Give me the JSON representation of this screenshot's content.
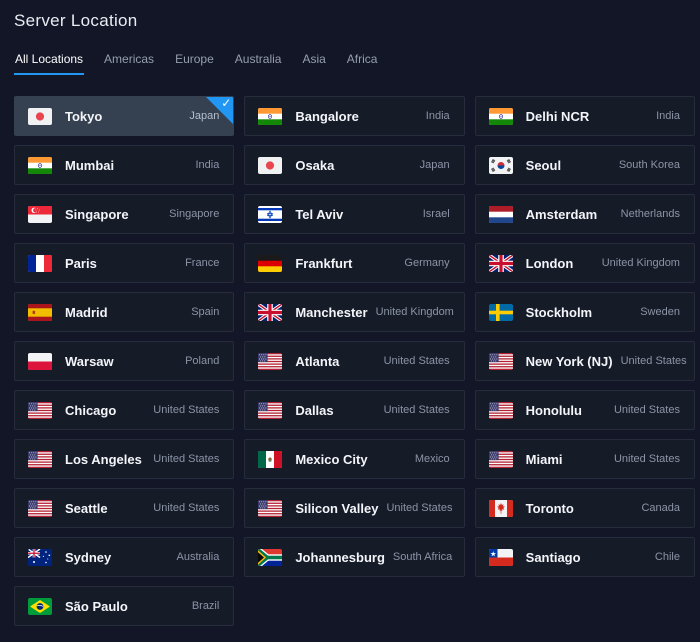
{
  "page": {
    "title": "Server Location"
  },
  "tabs": [
    {
      "label": "All Locations",
      "active": true
    },
    {
      "label": "Americas",
      "active": false
    },
    {
      "label": "Europe",
      "active": false
    },
    {
      "label": "Australia",
      "active": false
    },
    {
      "label": "Asia",
      "active": false
    },
    {
      "label": "Africa",
      "active": false
    }
  ],
  "locations": [
    {
      "city": "Tokyo",
      "country": "Japan",
      "flag": "jp",
      "selected": true
    },
    {
      "city": "Bangalore",
      "country": "India",
      "flag": "in",
      "selected": false
    },
    {
      "city": "Delhi NCR",
      "country": "India",
      "flag": "in",
      "selected": false
    },
    {
      "city": "Mumbai",
      "country": "India",
      "flag": "in",
      "selected": false
    },
    {
      "city": "Osaka",
      "country": "Japan",
      "flag": "jp",
      "selected": false
    },
    {
      "city": "Seoul",
      "country": "South Korea",
      "flag": "kr",
      "selected": false
    },
    {
      "city": "Singapore",
      "country": "Singapore",
      "flag": "sg",
      "selected": false
    },
    {
      "city": "Tel Aviv",
      "country": "Israel",
      "flag": "il",
      "selected": false
    },
    {
      "city": "Amsterdam",
      "country": "Netherlands",
      "flag": "nl",
      "selected": false
    },
    {
      "city": "Paris",
      "country": "France",
      "flag": "fr",
      "selected": false
    },
    {
      "city": "Frankfurt",
      "country": "Germany",
      "flag": "de",
      "selected": false
    },
    {
      "city": "London",
      "country": "United Kingdom",
      "flag": "gb",
      "selected": false
    },
    {
      "city": "Madrid",
      "country": "Spain",
      "flag": "es",
      "selected": false
    },
    {
      "city": "Manchester",
      "country": "United Kingdom",
      "flag": "gb",
      "selected": false
    },
    {
      "city": "Stockholm",
      "country": "Sweden",
      "flag": "se",
      "selected": false
    },
    {
      "city": "Warsaw",
      "country": "Poland",
      "flag": "pl",
      "selected": false
    },
    {
      "city": "Atlanta",
      "country": "United States",
      "flag": "us",
      "selected": false
    },
    {
      "city": "New York (NJ)",
      "country": "United States",
      "flag": "us",
      "selected": false
    },
    {
      "city": "Chicago",
      "country": "United States",
      "flag": "us",
      "selected": false
    },
    {
      "city": "Dallas",
      "country": "United States",
      "flag": "us",
      "selected": false
    },
    {
      "city": "Honolulu",
      "country": "United States",
      "flag": "us",
      "selected": false
    },
    {
      "city": "Los Angeles",
      "country": "United States",
      "flag": "us",
      "selected": false
    },
    {
      "city": "Mexico City",
      "country": "Mexico",
      "flag": "mx",
      "selected": false
    },
    {
      "city": "Miami",
      "country": "United States",
      "flag": "us",
      "selected": false
    },
    {
      "city": "Seattle",
      "country": "United States",
      "flag": "us",
      "selected": false
    },
    {
      "city": "Silicon Valley",
      "country": "United States",
      "flag": "us",
      "selected": false
    },
    {
      "city": "Toronto",
      "country": "Canada",
      "flag": "ca",
      "selected": false
    },
    {
      "city": "Sydney",
      "country": "Australia",
      "flag": "au",
      "selected": false
    },
    {
      "city": "Johannesburg",
      "country": "South Africa",
      "flag": "za",
      "selected": false
    },
    {
      "city": "Santiago",
      "country": "Chile",
      "flag": "cl",
      "selected": false
    },
    {
      "city": "São Paulo",
      "country": "Brazil",
      "flag": "br",
      "selected": false
    }
  ],
  "icons": {
    "selected_check": "✓"
  },
  "colors": {
    "accent": "#2196f3",
    "background": "#121626",
    "card": "#161b28",
    "card_border": "#262c3c",
    "card_selected": "#354050"
  }
}
